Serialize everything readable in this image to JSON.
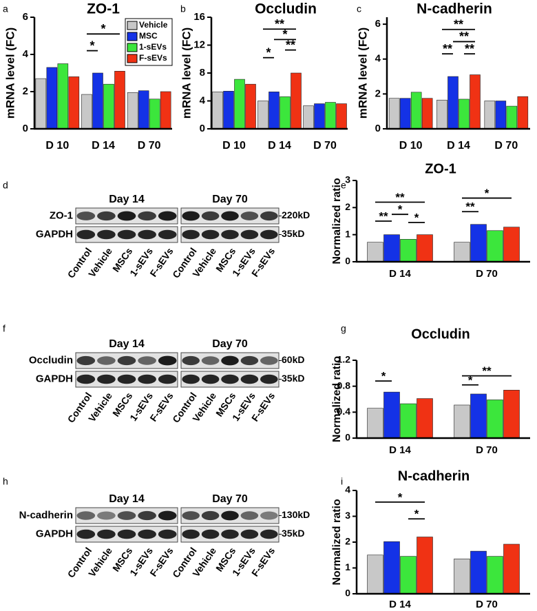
{
  "panel_labels": [
    "a",
    "b",
    "c",
    "d",
    "e",
    "f",
    "g",
    "h",
    "i"
  ],
  "chart_data": [
    {
      "type": "bar",
      "title": "ZO-1",
      "ylabel": "mRNA level (FC)",
      "categories": [
        "D 10",
        "D 14",
        "D 70"
      ],
      "series": [
        {
          "name": "Vehicle",
          "color": "#c8c8c8",
          "values": [
            2.7,
            1.85,
            1.95
          ]
        },
        {
          "name": "MSC",
          "color": "#1432e6",
          "values": [
            3.3,
            3.0,
            2.05
          ]
        },
        {
          "name": "1-sEVs",
          "color": "#3ce63c",
          "values": [
            3.5,
            2.4,
            1.6
          ]
        },
        {
          "name": "F-sEVs",
          "color": "#f03214",
          "values": [
            2.8,
            3.1,
            2.0
          ]
        }
      ],
      "ylim": [
        0,
        6
      ],
      "yticks": [
        0,
        2,
        4,
        6
      ],
      "legend": "upper right",
      "annotations": [
        "*",
        "*"
      ]
    },
    {
      "type": "bar",
      "title": "Occludin",
      "ylabel": "mRNA level (FC)",
      "categories": [
        "D 10",
        "D 14",
        "D 70"
      ],
      "series": [
        {
          "color": "#c8c8c8",
          "values": [
            5.3,
            4.0,
            3.3
          ]
        },
        {
          "color": "#1432e6",
          "values": [
            5.4,
            5.3,
            3.6
          ]
        },
        {
          "color": "#3ce63c",
          "values": [
            7.1,
            4.6,
            3.8
          ]
        },
        {
          "color": "#f03214",
          "values": [
            6.4,
            8.0,
            3.6
          ]
        }
      ],
      "ylim": [
        0,
        16
      ],
      "yticks": [
        0,
        4,
        8,
        12,
        16
      ],
      "annotations": [
        "*",
        "**",
        "*",
        "**"
      ]
    },
    {
      "type": "bar",
      "title": "N-cadherin",
      "ylabel": "mRNA level (FC)",
      "categories": [
        "D 10",
        "D 14",
        "D 70"
      ],
      "series": [
        {
          "color": "#c8c8c8",
          "values": [
            1.75,
            1.65,
            1.6
          ]
        },
        {
          "color": "#1432e6",
          "values": [
            1.75,
            3.0,
            1.6
          ]
        },
        {
          "color": "#3ce63c",
          "values": [
            2.1,
            1.7,
            1.3
          ]
        },
        {
          "color": "#f03214",
          "values": [
            1.75,
            3.1,
            1.85
          ]
        }
      ],
      "ylim": [
        0,
        6.4
      ],
      "yticks": [
        0,
        2,
        4,
        6
      ],
      "annotations": [
        "**",
        "**",
        "**",
        "**"
      ]
    },
    {
      "type": "bar",
      "title": "ZO-1",
      "ylabel": "Normalized ratio",
      "categories": [
        "D 14",
        "D 70"
      ],
      "series": [
        {
          "color": "#c8c8c8",
          "values": [
            0.72,
            0.72
          ]
        },
        {
          "color": "#1432e6",
          "values": [
            1.0,
            1.38
          ]
        },
        {
          "color": "#3ce63c",
          "values": [
            0.83,
            1.15
          ]
        },
        {
          "color": "#f03214",
          "values": [
            1.0,
            1.28
          ]
        }
      ],
      "ylim": [
        0,
        3
      ],
      "yticks": [
        0,
        1,
        2,
        3
      ],
      "annotations": [
        "**",
        "*",
        "*",
        "**",
        "**",
        "*"
      ]
    },
    {
      "type": "bar",
      "title": "Occludin",
      "ylabel": "Normalized ratio",
      "categories": [
        "D 14",
        "D 70"
      ],
      "series": [
        {
          "color": "#c8c8c8",
          "values": [
            0.46,
            0.51
          ]
        },
        {
          "color": "#1432e6",
          "values": [
            0.71,
            0.68
          ]
        },
        {
          "color": "#3ce63c",
          "values": [
            0.53,
            0.59
          ]
        },
        {
          "color": "#f03214",
          "values": [
            0.61,
            0.74
          ]
        }
      ],
      "ylim": [
        0,
        1.2
      ],
      "yticks": [
        0,
        0.4,
        0.8,
        1.2
      ],
      "annotations": [
        "*",
        "*",
        "**"
      ]
    },
    {
      "type": "bar",
      "title": "N-cadherin",
      "ylabel": "Normalized ratio",
      "categories": [
        "D 14",
        "D 70"
      ],
      "series": [
        {
          "color": "#c8c8c8",
          "values": [
            1.5,
            1.35
          ]
        },
        {
          "color": "#1432e6",
          "values": [
            2.02,
            1.65
          ]
        },
        {
          "color": "#3ce63c",
          "values": [
            1.45,
            1.45
          ]
        },
        {
          "color": "#f03214",
          "values": [
            2.2,
            1.92
          ]
        }
      ],
      "ylim": [
        0,
        4
      ],
      "yticks": [
        0,
        1,
        2,
        3,
        4
      ],
      "annotations": [
        "*",
        "*"
      ]
    }
  ],
  "blots": [
    {
      "days": [
        "Day 14",
        "Day 70"
      ],
      "rows": [
        {
          "label": "ZO-1",
          "size": "220kD"
        },
        {
          "label": "GAPDH",
          "size": "35kD"
        }
      ],
      "lanes": [
        [
          "Control",
          "Vehicle",
          "MSCs",
          "1-sEVs",
          "F-sEVs"
        ],
        [
          "Control",
          "Vehicle",
          "MSCs",
          "1-sEVs",
          "F-sEVs"
        ]
      ]
    },
    {
      "days": [
        "Day 14",
        "Day 70"
      ],
      "rows": [
        {
          "label": "Occludin",
          "size": "60kD"
        },
        {
          "label": "GAPDH",
          "size": "35kD"
        }
      ],
      "lanes": [
        [
          "Control",
          "Vehicle",
          "MSCs",
          "1-sEVs",
          "F-sEVs"
        ],
        [
          "Control",
          "Vehicle",
          "MSCs",
          "1-sEVs",
          "F-sEVs"
        ]
      ]
    },
    {
      "days": [
        "Day 14",
        "Day 70"
      ],
      "rows": [
        {
          "label": "N-cadherin",
          "size": "130kD"
        },
        {
          "label": "GAPDH",
          "size": "35kD"
        }
      ],
      "lanes": [
        [
          "Control",
          "Vehicle",
          "MSCs",
          "1-sEVs",
          "F-sEVs"
        ],
        [
          "Control",
          "Vehicle",
          "MSCs",
          "1-sEVs",
          "F-sEVs"
        ]
      ]
    }
  ]
}
